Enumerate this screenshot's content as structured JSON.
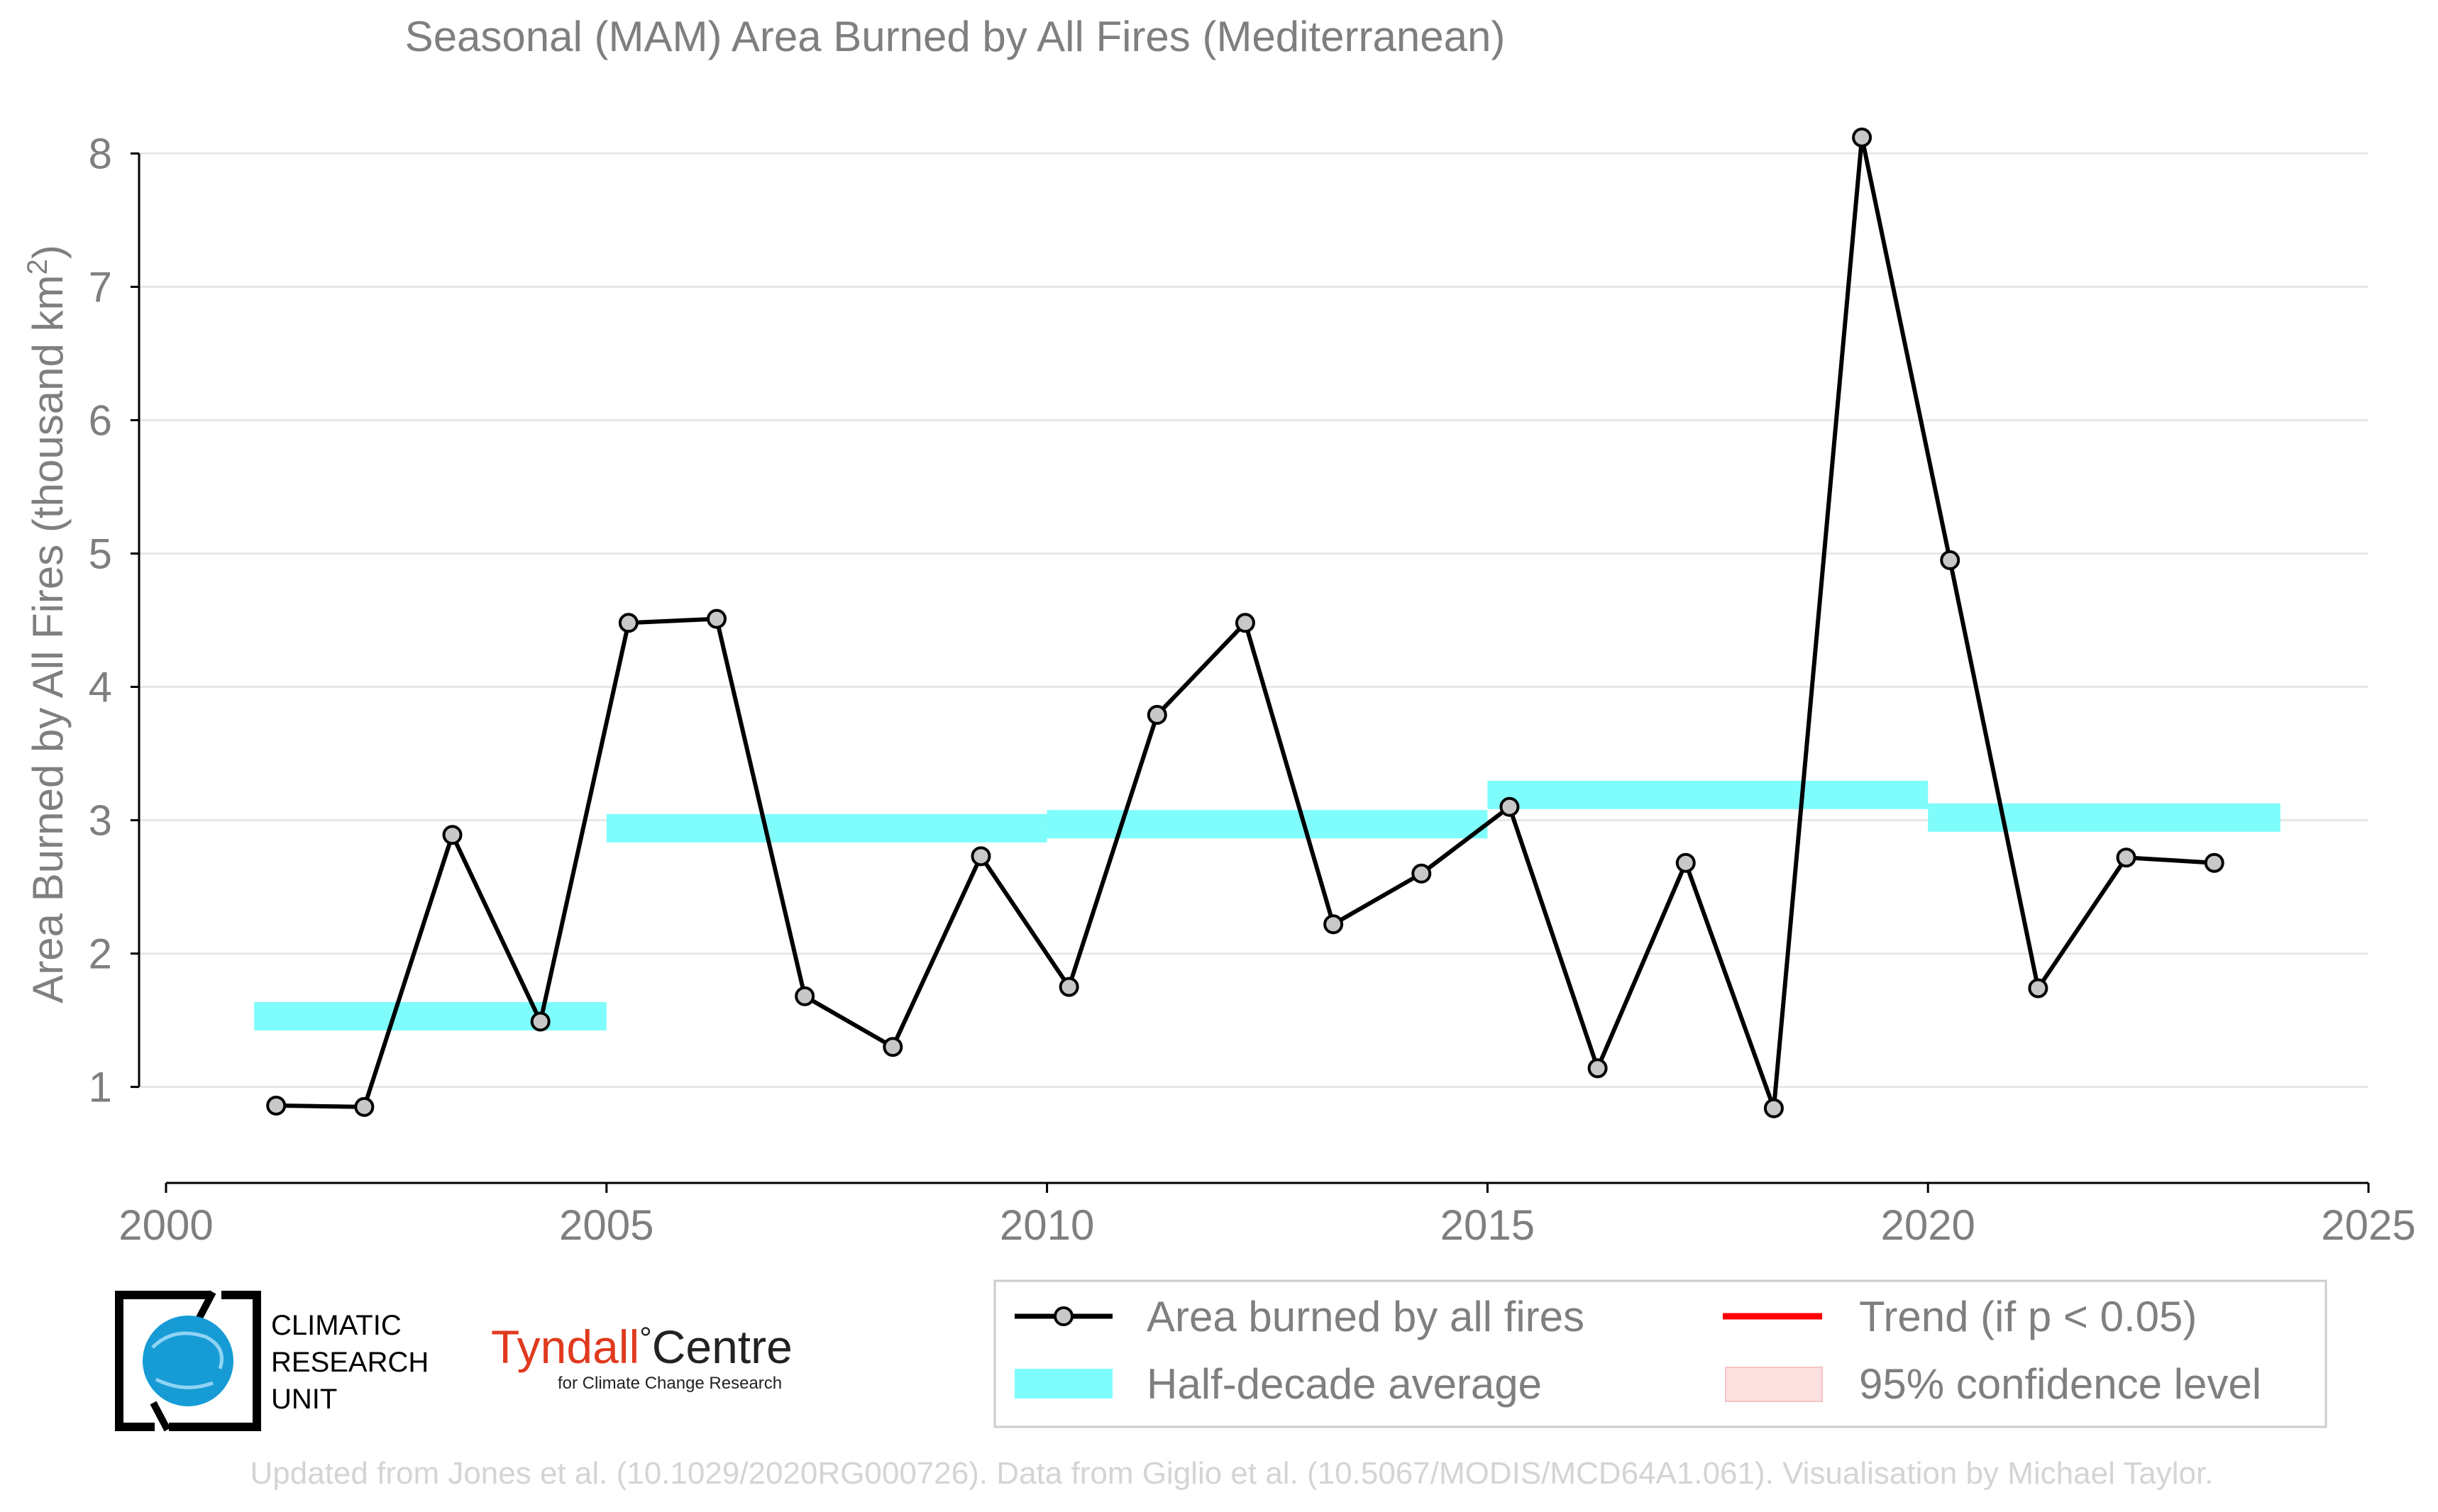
{
  "chart_data": {
    "type": "line",
    "title": "Seasonal (MAM) Area Burned by All Fires (Mediterranean)",
    "ylabel_main": "Area Burned by All Fires (thousand km",
    "ylabel_sup": "2",
    "ylabel_close": ")",
    "xlabel": "",
    "xlim": [
      2000,
      2025
    ],
    "ylim": [
      0.28,
      8.3
    ],
    "x_ticks": [
      2000,
      2005,
      2010,
      2015,
      2020,
      2025
    ],
    "y_ticks": [
      1,
      2,
      3,
      4,
      5,
      6,
      7,
      8
    ],
    "grid": "horizontal",
    "legend_placement": "bottom-right",
    "series": [
      {
        "name": "Area burned by all fires",
        "color": "#000000",
        "marker_fill": "#c8c8c8",
        "x": [
          2001.25,
          2002.25,
          2003.25,
          2004.25,
          2005.25,
          2006.25,
          2007.25,
          2008.25,
          2009.25,
          2010.25,
          2011.25,
          2012.25,
          2013.25,
          2014.25,
          2015.25,
          2016.25,
          2017.25,
          2018.25,
          2019.25,
          2020.25,
          2021.25,
          2022.25,
          2023.25
        ],
        "y": [
          0.86,
          0.85,
          2.89,
          1.49,
          4.48,
          4.51,
          1.68,
          1.3,
          2.73,
          1.75,
          3.79,
          4.48,
          2.22,
          2.6,
          3.1,
          1.14,
          2.68,
          0.84,
          8.12,
          4.95,
          1.74,
          2.72,
          2.68
        ]
      }
    ],
    "half_decade_average": {
      "name": "Half-decade average",
      "color": "#7ffcfc",
      "segments": [
        {
          "x0": 2001,
          "x1": 2005,
          "y": 1.53
        },
        {
          "x0": 2005,
          "x1": 2010,
          "y": 2.94
        },
        {
          "x0": 2010,
          "x1": 2015,
          "y": 2.97
        },
        {
          "x0": 2015,
          "x1": 2020,
          "y": 3.19
        },
        {
          "x0": 2020,
          "x1": 2024,
          "y": 3.02
        }
      ]
    },
    "legend": [
      {
        "label": "Area burned by all fires",
        "kind": "line-marker",
        "color": "#000000"
      },
      {
        "label": "Trend (if p < 0.05)",
        "kind": "line",
        "color": "#ff0000"
      },
      {
        "label": "Half-decade average",
        "kind": "band",
        "color": "#7ffcfc"
      },
      {
        "label": "95% confidence level",
        "kind": "patch",
        "color": "#fde0e0"
      }
    ]
  },
  "logos": {
    "cru_lines": [
      "CLIMATIC",
      "RESEARCH",
      "UNIT"
    ],
    "tyndall_main": "Tyndall",
    "tyndall_degree": "°",
    "tyndall_centre": "Centre",
    "tyndall_sub": "for Climate Change Research"
  },
  "footer": "Updated from Jones et al. (10.1029/2020RG000726). Data from Giglio et al. (10.5067/MODIS/MCD64A1.061). Visualisation by Michael Taylor."
}
